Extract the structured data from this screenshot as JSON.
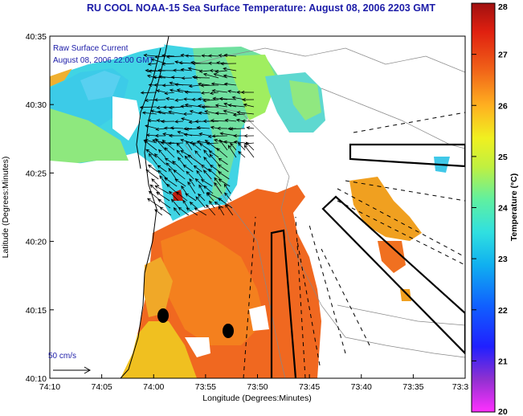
{
  "chart_data": {
    "type": "heatmap",
    "title": "RU COOL  NOAA-15  Sea Surface Temperature:  August 08, 2006 2203 GMT",
    "xlabel": "Longitude (Degrees:Minutes)",
    "ylabel": "Latitude (Degrees:Minutes)",
    "x_ticks": [
      "74:10",
      "74:05",
      "74:00",
      "73:55",
      "73:50",
      "73:45",
      "73:40",
      "73:35",
      "73:3"
    ],
    "y_ticks": [
      "40:35",
      "40:30",
      "40:25",
      "40:20",
      "40:15",
      "40:10"
    ],
    "annotation_line1": "Raw Surface Current",
    "annotation_line2": "August 08, 2006 22:00 GMT",
    "scale_label": "50 cm/s",
    "colorbar": {
      "label": "Temperature (°C)",
      "ticks": [
        "28",
        "27",
        "26",
        "25",
        "24",
        "23",
        "22",
        "21",
        "20"
      ],
      "range": [
        20,
        28
      ]
    }
  },
  "colors": {
    "title": "#1c1ca8",
    "land": "#ffffff",
    "warm": "#f06020",
    "cool": "#40d0e0"
  }
}
